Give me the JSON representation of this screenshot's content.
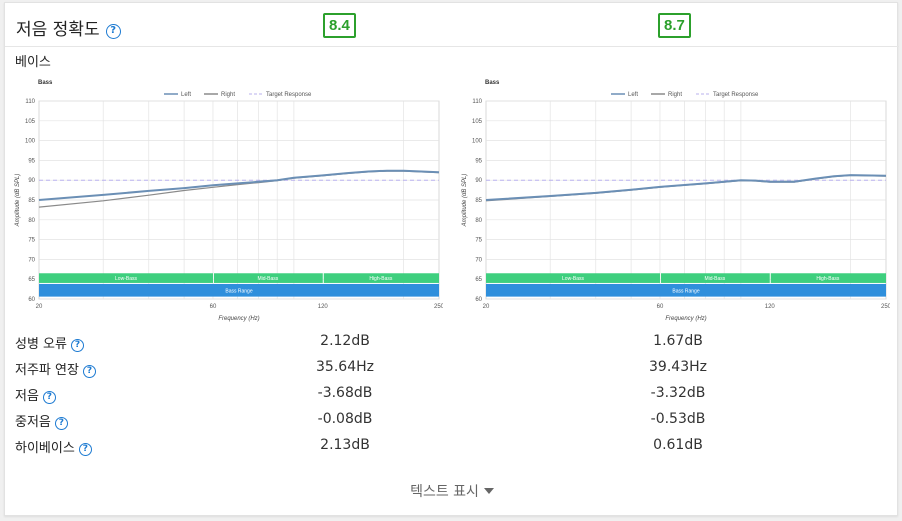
{
  "header": {
    "title": "저음 정확도",
    "help_glyph": "?",
    "scores": [
      "8.4",
      "8.7"
    ],
    "score_color": "#2ca02c"
  },
  "section": {
    "subtitle": "베이스"
  },
  "chart_data": [
    {
      "type": "line",
      "title": "Bass",
      "xlabel": "Frequency (Hz)",
      "ylabel": "Amplitude (dB SPL)",
      "x_scale": "log",
      "xlim": [
        20,
        250
      ],
      "ylim": [
        60,
        110
      ],
      "xticks": [
        20,
        60,
        120,
        250
      ],
      "yticks": [
        60,
        65,
        70,
        75,
        80,
        85,
        90,
        95,
        100,
        105,
        110
      ],
      "legend": [
        "Left",
        "Right",
        "Target Response"
      ],
      "legend_position": "top-center",
      "grid": true,
      "bands": [
        {
          "label": "Low-Bass",
          "from": 20,
          "to": 60,
          "color": "#3ecf7e"
        },
        {
          "label": "Mid-Bass",
          "from": 60,
          "to": 120,
          "color": "#3ecf7e"
        },
        {
          "label": "High-Bass",
          "from": 120,
          "to": 250,
          "color": "#3ecf7e"
        },
        {
          "label": "Bass Range",
          "from": 20,
          "to": 250,
          "color": "#2f8fdc"
        }
      ],
      "series": [
        {
          "name": "Left",
          "color": "#6b8fb5",
          "x": [
            20,
            30,
            40,
            50,
            60,
            70,
            80,
            90,
            100,
            120,
            140,
            160,
            180,
            200,
            250
          ],
          "y": [
            85.0,
            86.3,
            87.3,
            88.0,
            88.7,
            89.2,
            89.6,
            90.0,
            90.6,
            91.2,
            91.8,
            92.2,
            92.4,
            92.4,
            92.0
          ]
        },
        {
          "name": "Right",
          "color": "#8a8a8a",
          "x": [
            20,
            30,
            40,
            50,
            60,
            70,
            80,
            90,
            100,
            120,
            140,
            160,
            180,
            200,
            250
          ],
          "y": [
            83.2,
            84.8,
            86.2,
            87.4,
            88.2,
            88.9,
            89.4,
            89.9,
            90.5,
            91.1,
            91.7,
            92.1,
            92.3,
            92.3,
            91.9
          ]
        },
        {
          "name": "Target Response",
          "color": "#b8b0ee",
          "dashed": true,
          "x": [
            20,
            250
          ],
          "y": [
            90,
            90
          ]
        }
      ]
    },
    {
      "type": "line",
      "title": "Bass",
      "xlabel": "Frequency (Hz)",
      "ylabel": "Amplitude (dB SPL)",
      "x_scale": "log",
      "xlim": [
        20,
        250
      ],
      "ylim": [
        60,
        110
      ],
      "xticks": [
        20,
        60,
        120,
        250
      ],
      "yticks": [
        60,
        65,
        70,
        75,
        80,
        85,
        90,
        95,
        100,
        105,
        110
      ],
      "legend": [
        "Left",
        "Right",
        "Target Response"
      ],
      "legend_position": "top-center",
      "grid": true,
      "bands": [
        {
          "label": "Low-Bass",
          "from": 20,
          "to": 60,
          "color": "#3ecf7e"
        },
        {
          "label": "Mid-Bass",
          "from": 60,
          "to": 120,
          "color": "#3ecf7e"
        },
        {
          "label": "High-Bass",
          "from": 120,
          "to": 250,
          "color": "#3ecf7e"
        },
        {
          "label": "Bass Range",
          "from": 20,
          "to": 250,
          "color": "#2f8fdc"
        }
      ],
      "series": [
        {
          "name": "Left",
          "color": "#6b8fb5",
          "x": [
            20,
            30,
            40,
            50,
            60,
            70,
            80,
            90,
            100,
            110,
            120,
            140,
            160,
            180,
            200,
            250
          ],
          "y": [
            85.0,
            86.0,
            86.8,
            87.6,
            88.3,
            88.8,
            89.2,
            89.6,
            90.0,
            89.9,
            89.6,
            89.6,
            90.4,
            91.0,
            91.3,
            91.1
          ]
        },
        {
          "name": "Right",
          "color": "#8a8a8a",
          "x": [
            20,
            30,
            40,
            50,
            60,
            70,
            80,
            90,
            100,
            110,
            120,
            140,
            160,
            180,
            200,
            250
          ],
          "y": [
            84.8,
            85.9,
            86.7,
            87.5,
            88.2,
            88.7,
            89.1,
            89.5,
            89.9,
            89.8,
            89.5,
            89.5,
            90.3,
            90.9,
            91.2,
            91.0
          ]
        },
        {
          "name": "Target Response",
          "color": "#b8b0ee",
          "dashed": true,
          "x": [
            20,
            250
          ],
          "y": [
            90,
            90
          ]
        }
      ]
    }
  ],
  "metrics": [
    {
      "label": "성병 오류",
      "values": [
        "2.12dB",
        "1.67dB"
      ]
    },
    {
      "label": "저주파 연장",
      "values": [
        "35.64Hz",
        "39.43Hz"
      ]
    },
    {
      "label": "저음",
      "values": [
        "-3.68dB",
        "-3.32dB"
      ]
    },
    {
      "label": "중저음",
      "values": [
        "-0.08dB",
        "-0.53dB"
      ]
    },
    {
      "label": "하이베이스",
      "values": [
        "2.13dB",
        "0.61dB"
      ]
    }
  ],
  "footer": {
    "show_text_label": "텍스트 표시"
  }
}
